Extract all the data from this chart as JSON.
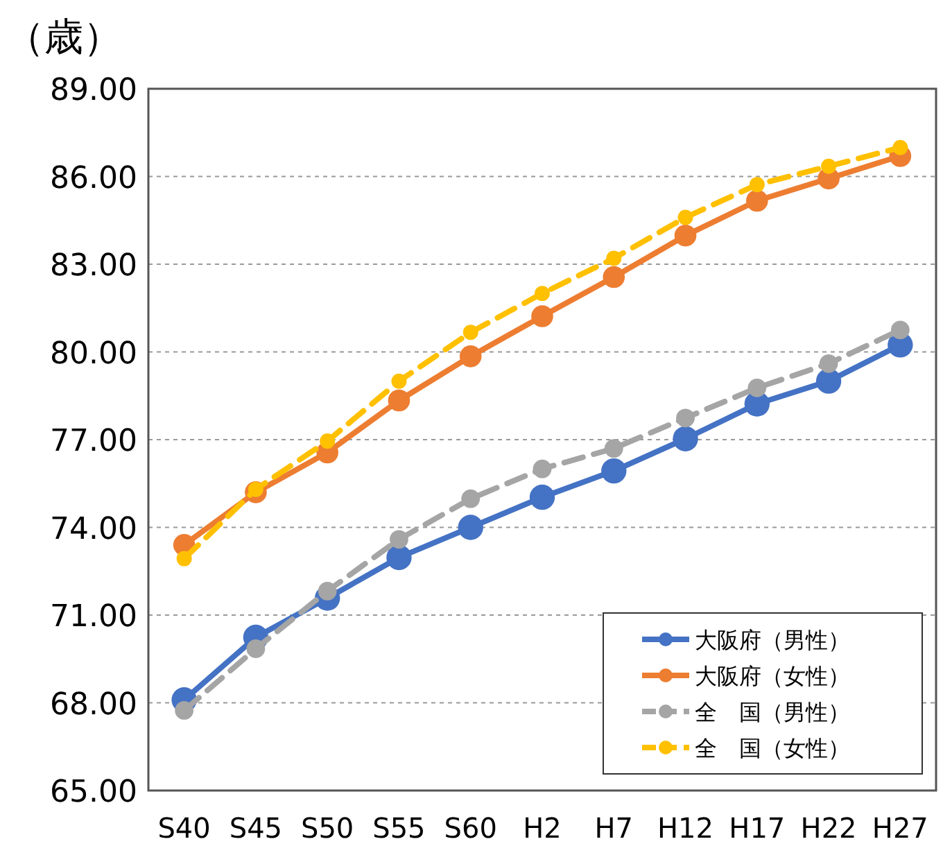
{
  "chart_data": {
    "type": "line",
    "ylabel": "（歳）",
    "categories": [
      "S40",
      "S45",
      "S50",
      "S55",
      "S60",
      "H2",
      "H7",
      "H12",
      "H17",
      "H22",
      "H27"
    ],
    "ylim": [
      65,
      89
    ],
    "yticks": [
      {
        "value": 65,
        "label": "65.00"
      },
      {
        "value": 68,
        "label": "68.00"
      },
      {
        "value": 71,
        "label": "71.00"
      },
      {
        "value": 74,
        "label": "74.00"
      },
      {
        "value": 77,
        "label": "77.00"
      },
      {
        "value": 80,
        "label": "80.00"
      },
      {
        "value": 83,
        "label": "83.00"
      },
      {
        "value": 86,
        "label": "86.00"
      },
      {
        "value": 89,
        "label": "89.00"
      }
    ],
    "grid": "y",
    "legend": "bottom right",
    "marker": "circle",
    "series": [
      {
        "name": "大阪府（男性）",
        "color": "#4472c4",
        "line_style": "solid",
        "values": [
          68.1,
          70.24,
          71.58,
          72.97,
          74.0,
          75.03,
          75.93,
          77.03,
          78.22,
          79.0,
          80.24
        ]
      },
      {
        "name": "大阪府（女性）",
        "color": "#ed7d31",
        "line_style": "solid",
        "values": [
          73.4,
          75.2,
          76.56,
          78.34,
          79.85,
          81.22,
          82.56,
          83.98,
          85.17,
          85.93,
          86.7
        ]
      },
      {
        "name": "全　国（男性）",
        "color": "#a5a5a5",
        "line_style": "dashed",
        "values": [
          67.74,
          69.85,
          71.82,
          73.59,
          74.98,
          76.0,
          76.7,
          77.74,
          78.77,
          79.6,
          80.75
        ]
      },
      {
        "name": "全　国（女性）",
        "color": "#ffc000",
        "line_style": "dashed",
        "values": [
          72.93,
          75.3,
          76.95,
          79.0,
          80.67,
          82.0,
          83.2,
          84.6,
          85.72,
          86.35,
          86.99
        ]
      }
    ]
  }
}
